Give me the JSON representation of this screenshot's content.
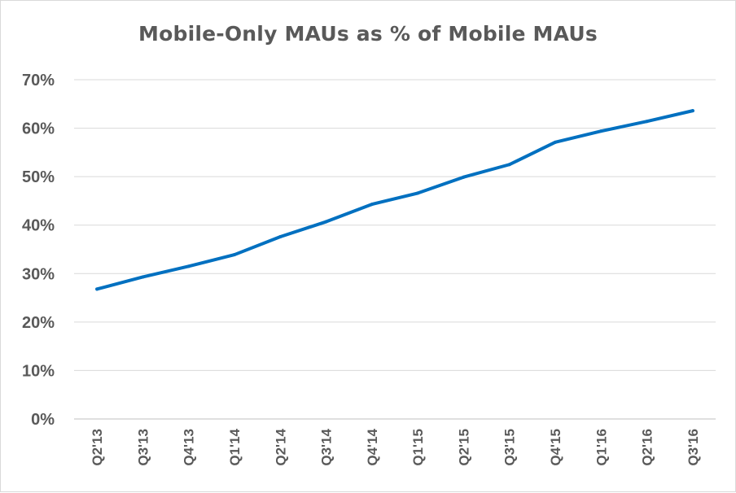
{
  "chart_data": {
    "type": "line",
    "title": "Mobile-Only MAUs as % of Mobile MAUs",
    "xlabel": "",
    "ylabel": "",
    "categories": [
      "Q2'13",
      "Q3'13",
      "Q4'13",
      "Q1'14",
      "Q2'14",
      "Q3'14",
      "Q4'14",
      "Q1'15",
      "Q2'15",
      "Q3'15",
      "Q4'15",
      "Q1'16",
      "Q2'16",
      "Q3'16"
    ],
    "series": [
      {
        "color": "#0070c0",
        "values": [
          26.8,
          29.3,
          31.5,
          33.9,
          37.6,
          40.7,
          44.3,
          46.6,
          49.9,
          52.5,
          57.1,
          59.4,
          61.4,
          63.6
        ]
      }
    ],
    "ylim": [
      0,
      70
    ],
    "yticks": [
      0,
      10,
      20,
      30,
      40,
      50,
      60,
      70
    ],
    "ytick_labels": [
      "0%",
      "10%",
      "20%",
      "30%",
      "40%",
      "50%",
      "60%",
      "70%"
    ],
    "grid": true,
    "legend": "none"
  }
}
